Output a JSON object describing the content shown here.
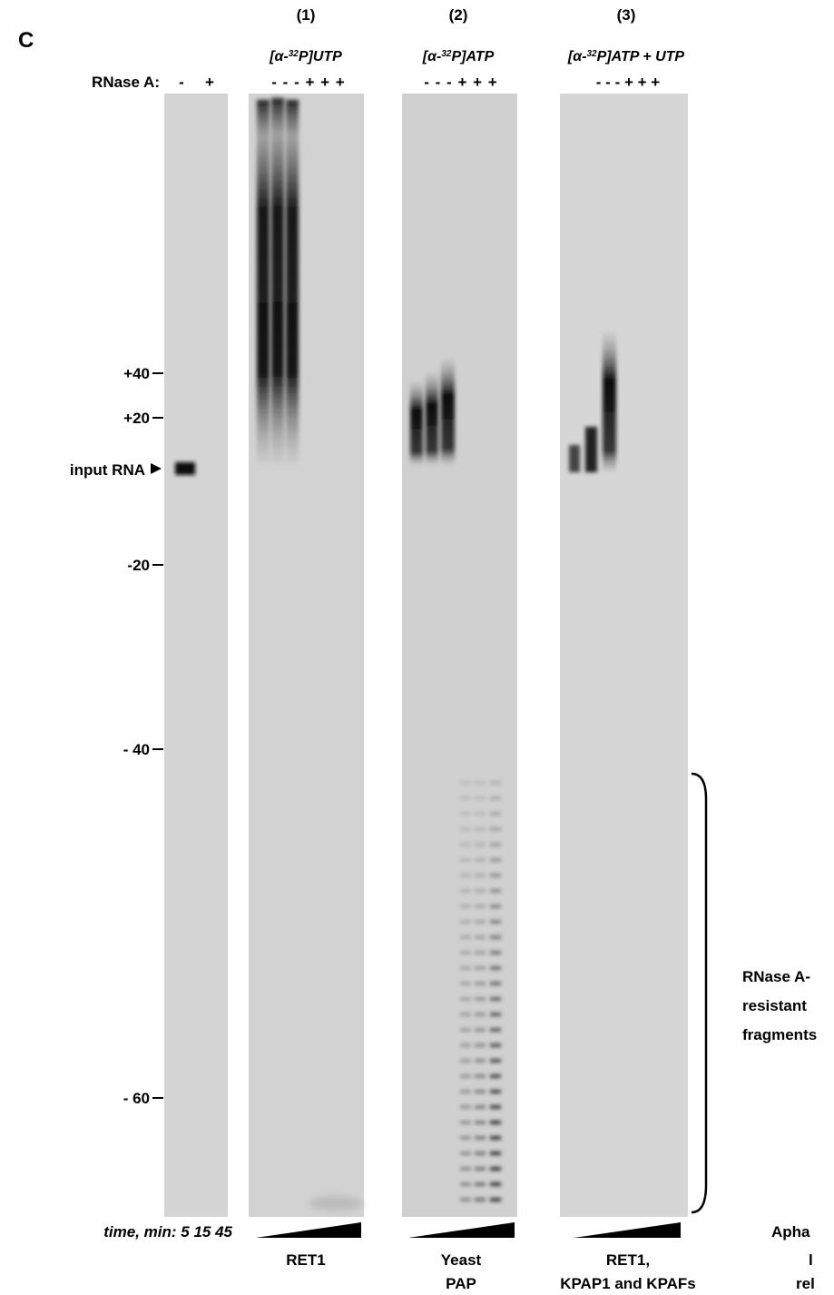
{
  "panel_label": "C",
  "reactions": [
    {
      "number": "(1)",
      "substrate": {
        "prefix": "[α-",
        "sup": "32",
        "suffix": "P]UTP"
      }
    },
    {
      "number": "(2)",
      "substrate": {
        "prefix": "[α-",
        "sup": "32",
        "suffix": "P]ATP"
      }
    },
    {
      "number": "(3)",
      "substrate": {
        "prefix": "[α-",
        "sup": "32",
        "suffix": "P]ATP + UTP"
      }
    }
  ],
  "rnase_label": "RNase A:",
  "lane_signs": {
    "input": [
      "-",
      "+"
    ],
    "panels": [
      "- - - + + +",
      "- - - + + +",
      "-  -  -  + + +"
    ]
  },
  "markers": [
    "+40",
    "+20",
    "input RNA",
    "-20",
    "- 40",
    "- 60"
  ],
  "bracket_label": [
    "RNase A-",
    "resistant",
    "fragments"
  ],
  "time_label": "time, min: 5 15 45",
  "enzymes": [
    [
      "RET1"
    ],
    [
      "Yeast",
      "PAP"
    ],
    [
      "RET1,",
      "KPAP1 and KPAFs"
    ]
  ],
  "cropped_text": [
    "Apha",
    "l",
    "rel"
  ]
}
